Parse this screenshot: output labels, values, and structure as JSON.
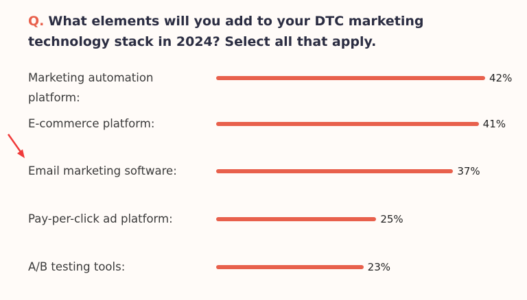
{
  "chart_data": {
    "type": "bar",
    "orientation": "horizontal",
    "question_label": "Q.",
    "title": "What elements will you add to your DTC marketing technology stack in 2024? Select all that apply.",
    "categories": [
      "Marketing automation platform:",
      "E-commerce platform:",
      "Email marketing software:",
      "Pay-per-click ad platform:",
      "A/B testing tools:"
    ],
    "values": [
      42,
      41,
      37,
      25,
      23
    ],
    "value_labels": [
      "42%",
      "41%",
      "37%",
      "25%",
      "23%"
    ],
    "color": "#e8604c"
  }
}
